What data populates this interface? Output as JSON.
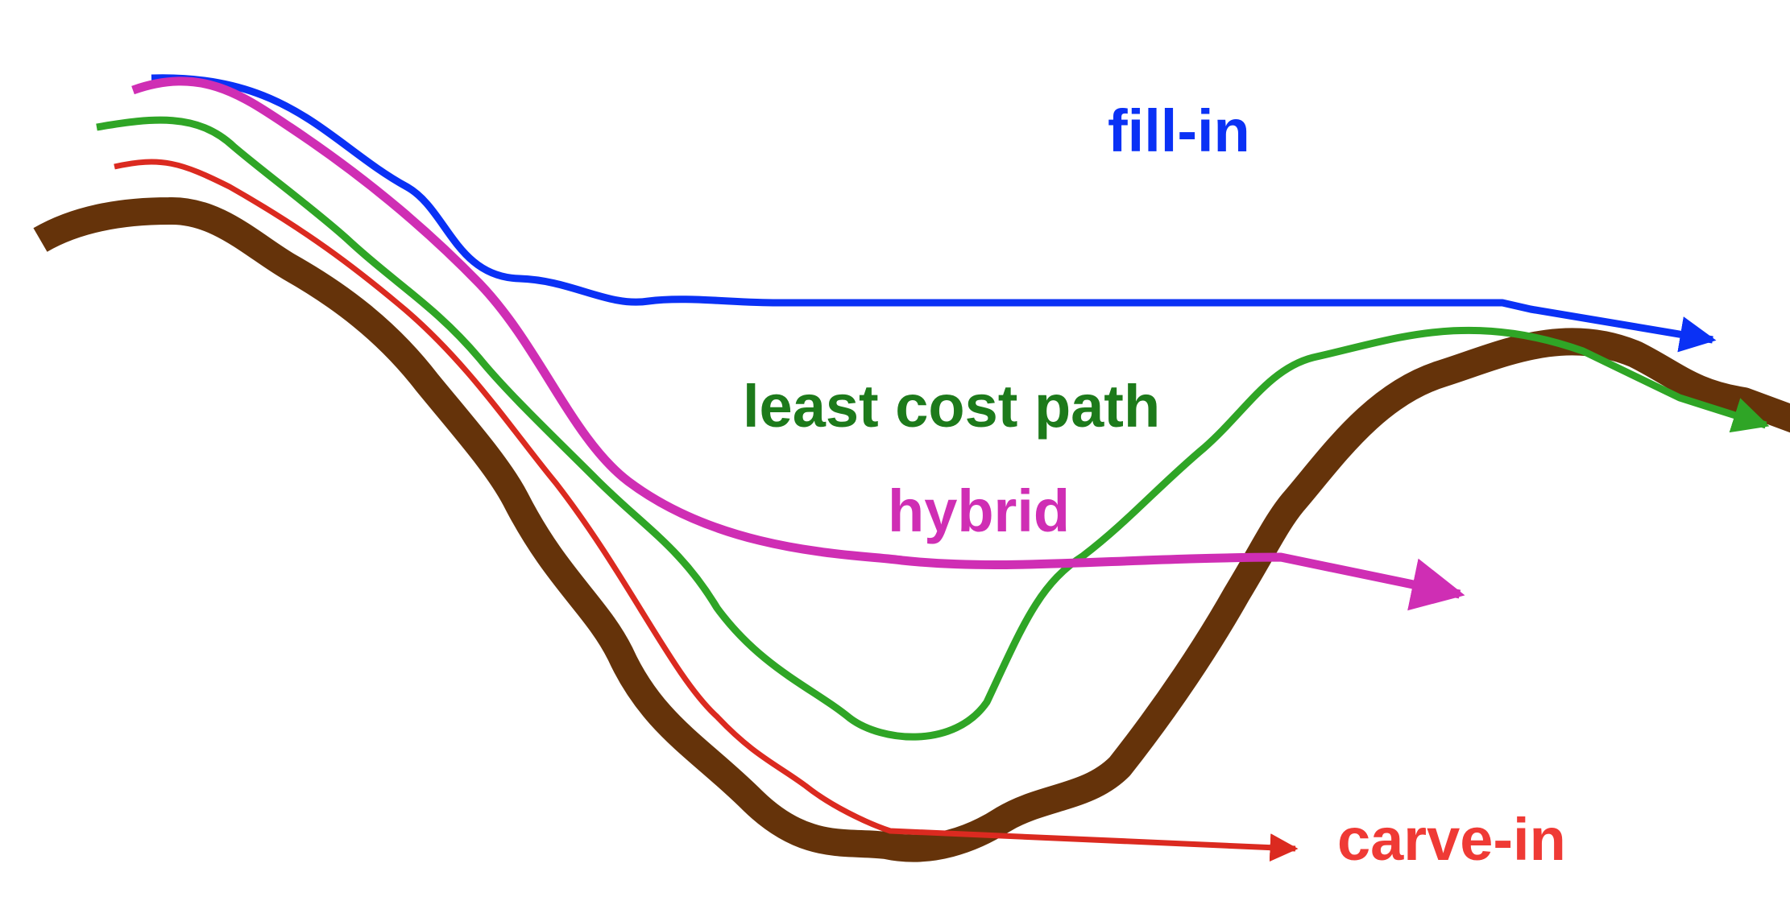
{
  "labels": {
    "fill_in": "fill-in",
    "least_cost_path": "least cost path",
    "hybrid": "hybrid",
    "carve_in": "carve-in"
  },
  "colors": {
    "terrain": "#65330a",
    "fill_in": "#0a31f5",
    "least_cost_path": "#2fa526",
    "least_cost_path_label": "#1d7a1b",
    "hybrid": "#cf2eb4",
    "carve_in": "#db2a20",
    "carve_in_label": "#ef3a35"
  }
}
